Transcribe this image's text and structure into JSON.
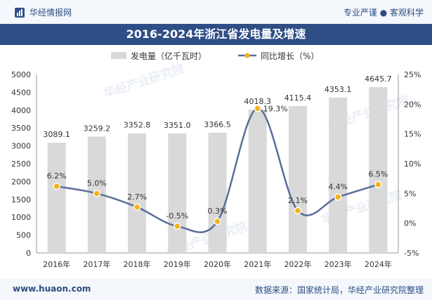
{
  "header": {
    "brand": "华经情报网",
    "tagline": "专业严谨 ● 客观科学",
    "title": "2016-2024年浙江省发电量及增速"
  },
  "footer": {
    "url": "www.huaon.com",
    "source": "数据来源：国家统计局，华经产业研究院整理"
  },
  "watermark": "华经产业研究院",
  "colors": {
    "bar": "#d9d9d9",
    "line": "#5a6d99",
    "marker": "#f2b21b",
    "title_bg": "#2f4e86",
    "text_dark": "#2d4d82"
  },
  "chart_data": {
    "type": "bar",
    "categories": [
      "2016年",
      "2017年",
      "2018年",
      "2019年",
      "2020年",
      "2021年",
      "2022年",
      "2023年",
      "2024年"
    ],
    "series": [
      {
        "name": "发电量（亿千瓦时）",
        "type": "bar",
        "axis": "left",
        "values": [
          3089.1,
          3259.2,
          3352.8,
          3351.0,
          3366.5,
          4018.3,
          4115.4,
          4353.1,
          4645.7
        ],
        "labels": [
          "3089.1",
          "3259.2",
          "3352.8",
          "3351.0",
          "3366.5",
          "4018.3",
          "4115.4",
          "4353.1",
          "4645.7"
        ]
      },
      {
        "name": "同比增长（%）",
        "type": "line",
        "axis": "right",
        "values": [
          6.2,
          5.0,
          2.7,
          -0.5,
          0.3,
          19.3,
          2.1,
          4.4,
          6.5
        ],
        "labels": [
          "6.2%",
          "5.0%",
          "2.7%",
          "-0.5%",
          "0.3%",
          "19.3%",
          "2.1%",
          "4.4%",
          "6.5%"
        ]
      }
    ],
    "y_left": {
      "min": 0,
      "max": 5000,
      "ticks": [
        "0",
        "500",
        "1000",
        "1500",
        "2000",
        "2500",
        "3000",
        "3500",
        "4000",
        "4500",
        "5000"
      ]
    },
    "y_right": {
      "min": -5,
      "max": 25,
      "ticks": [
        "-5%",
        "0%",
        "5%",
        "10%",
        "15%",
        "20%",
        "25%"
      ]
    },
    "legend": {
      "position": "top-center",
      "items": [
        "发电量（亿千瓦时）",
        "同比增长（%）"
      ]
    }
  }
}
